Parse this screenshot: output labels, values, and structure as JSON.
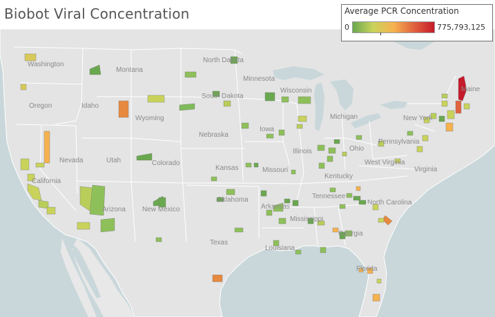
{
  "title": "Biobot Viral Concentration",
  "legend": {
    "title": "Average PCR Concentration",
    "min_label": "0",
    "max_label": "775,793,125",
    "colors": [
      "#6aa84f",
      "#c9d35b",
      "#f6b24f",
      "#e0633f",
      "#c51b2a"
    ]
  },
  "map": {
    "land_color": "#e6e6e6",
    "water_color": "#c9d7da",
    "state_labels": [
      "Washington",
      "Montana",
      "North Dakota",
      "Minnesota",
      "Oregon",
      "Idaho",
      "South Dakota",
      "Wisconsin",
      "Maine",
      "Wyoming",
      "Michigan",
      "New York",
      "Nebraska",
      "Iowa",
      "Nevada",
      "Utah",
      "Colorado",
      "Illinois",
      "Ohio",
      "Pennsylvania",
      "California",
      "Kansas",
      "Missouri",
      "West Virginia",
      "Kentucky",
      "Virginia",
      "Oklahoma",
      "Tennessee",
      "North Carolina",
      "Arizona",
      "New Mexico",
      "Arkansas",
      "Mississippi",
      "Georgia",
      "Texas",
      "Louisiana",
      "Florida"
    ]
  }
}
